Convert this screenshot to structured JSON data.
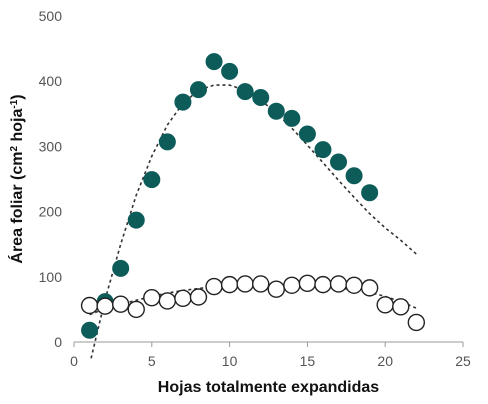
{
  "chart_data": {
    "type": "scatter",
    "title": "",
    "xlabel": "Hojas totalmente expandidas",
    "ylabel_parts": [
      "Área foliar (cm",
      "2",
      " hoja",
      "-1",
      ")"
    ],
    "xlim": [
      0,
      25
    ],
    "ylim": [
      0,
      500
    ],
    "xticks": [
      "0",
      "5",
      "10",
      "15",
      "20",
      "25"
    ],
    "yticks": [
      "0",
      "100",
      "200",
      "300",
      "400",
      "500"
    ],
    "grid": false,
    "legend": "none",
    "series": [
      {
        "marker": "filled-circle",
        "color": "#0d5c5a",
        "points": [
          [
            1,
            18
          ],
          [
            2,
            62
          ],
          [
            3,
            113
          ],
          [
            4,
            187
          ],
          [
            5,
            249
          ],
          [
            6,
            307
          ],
          [
            7,
            368
          ],
          [
            8,
            387
          ],
          [
            9,
            430
          ],
          [
            10,
            415
          ],
          [
            11,
            384
          ],
          [
            12,
            375
          ],
          [
            13,
            354
          ],
          [
            14,
            343
          ],
          [
            15,
            319
          ],
          [
            16,
            295
          ],
          [
            17,
            276
          ],
          [
            18,
            255
          ],
          [
            19,
            229
          ]
        ],
        "trend": [
          [
            1.1,
            -25
          ],
          [
            2,
            65
          ],
          [
            3,
            150
          ],
          [
            4,
            225
          ],
          [
            5,
            285
          ],
          [
            6,
            333
          ],
          [
            7,
            366
          ],
          [
            8,
            386
          ],
          [
            9,
            394
          ],
          [
            10,
            394
          ],
          [
            11,
            386
          ],
          [
            12,
            371
          ],
          [
            13,
            351
          ],
          [
            14,
            328
          ],
          [
            15,
            302
          ],
          [
            16,
            275
          ],
          [
            17,
            248
          ],
          [
            18,
            222
          ],
          [
            19,
            197
          ],
          [
            20,
            175
          ],
          [
            21,
            156
          ],
          [
            22,
            135
          ]
        ]
      },
      {
        "marker": "open-circle",
        "color": "#222222",
        "points": [
          [
            1,
            56
          ],
          [
            2,
            55
          ],
          [
            3,
            58
          ],
          [
            4,
            50
          ],
          [
            5,
            68
          ],
          [
            6,
            63
          ],
          [
            7,
            67
          ],
          [
            8,
            69
          ],
          [
            9,
            85
          ],
          [
            10,
            88
          ],
          [
            11,
            89
          ],
          [
            12,
            89
          ],
          [
            13,
            81
          ],
          [
            14,
            87
          ],
          [
            15,
            90
          ],
          [
            16,
            88
          ],
          [
            17,
            89
          ],
          [
            18,
            87
          ],
          [
            19,
            83
          ],
          [
            20,
            57
          ],
          [
            21,
            54
          ],
          [
            22,
            30
          ]
        ],
        "trend": [
          [
            1,
            42
          ],
          [
            2,
            51
          ],
          [
            3,
            58
          ],
          [
            4,
            64
          ],
          [
            5,
            70
          ],
          [
            6,
            75
          ],
          [
            7,
            79
          ],
          [
            8,
            82
          ],
          [
            9,
            85
          ],
          [
            10,
            86
          ],
          [
            11,
            87
          ],
          [
            12,
            88
          ],
          [
            13,
            88
          ],
          [
            14,
            87
          ],
          [
            15,
            86
          ],
          [
            16,
            85
          ],
          [
            17,
            83
          ],
          [
            18,
            80
          ],
          [
            19,
            76
          ],
          [
            20,
            70
          ],
          [
            21,
            62
          ],
          [
            22,
            52
          ]
        ]
      }
    ]
  }
}
